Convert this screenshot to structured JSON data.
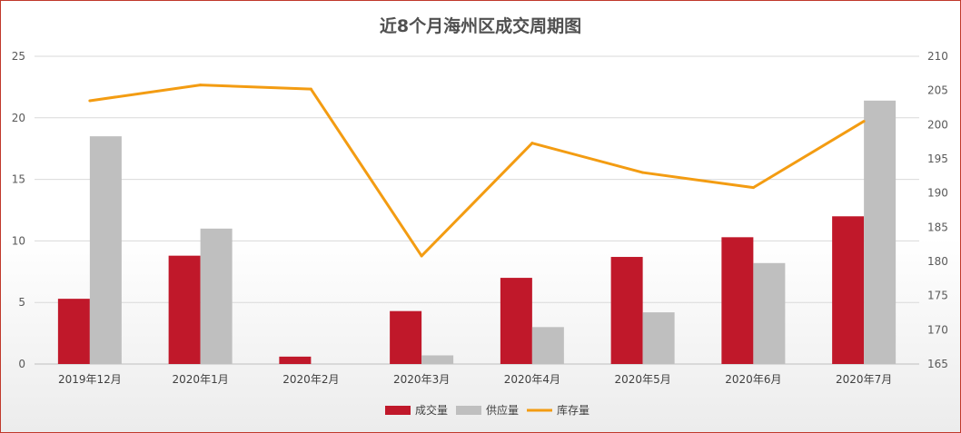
{
  "chart_data": {
    "type": "bar",
    "title": "近8个月海州区成交周期图",
    "categories": [
      "2019年12月",
      "2020年1月",
      "2020年2月",
      "2020年3月",
      "2020年4月",
      "2020年5月",
      "2020年6月",
      "2020年7月"
    ],
    "series": [
      {
        "name": "成交量",
        "type": "bar",
        "axis": "left",
        "color": "#c0182a",
        "values": [
          5.3,
          8.8,
          0.6,
          4.3,
          7.0,
          8.7,
          10.3,
          12.0
        ]
      },
      {
        "name": "供应量",
        "type": "bar",
        "axis": "left",
        "color": "#bfbfbf",
        "values": [
          18.5,
          11.0,
          0,
          0.7,
          3.0,
          4.2,
          8.2,
          21.4
        ]
      },
      {
        "name": "库存量",
        "type": "line",
        "axis": "right",
        "color": "#f39c12",
        "values": [
          203.5,
          205.8,
          205.2,
          180.8,
          197.3,
          193.0,
          190.8,
          200.5
        ]
      }
    ],
    "ylim": [
      0,
      25
    ],
    "yticks": [
      "0",
      "5",
      "10",
      "15",
      "20",
      "25"
    ],
    "y2lim": [
      165,
      210
    ],
    "y2ticks": [
      "165",
      "170",
      "175",
      "180",
      "185",
      "190",
      "195",
      "200",
      "205",
      "210"
    ],
    "grid": true,
    "legend": "bottom"
  }
}
